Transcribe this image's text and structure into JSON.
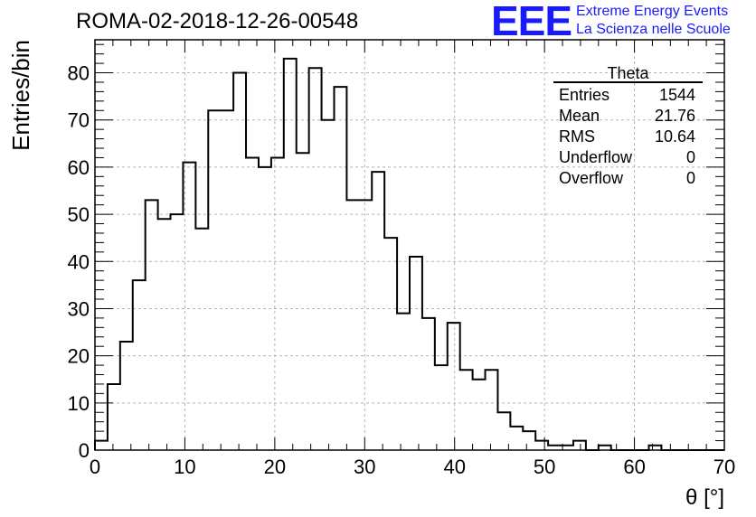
{
  "header": {
    "run_title": "ROMA-02-2018-12-26-00548",
    "logo_text": "EEE",
    "logo_line1": "Extreme Energy Events",
    "logo_line2": "La Scienza nelle Scuole",
    "brand_color": "#1a1aff"
  },
  "stats_box": {
    "title": "Theta",
    "rows": [
      {
        "label": "Entries",
        "value": "1544"
      },
      {
        "label": "Mean",
        "value": "21.76"
      },
      {
        "label": "RMS",
        "value": "10.64"
      },
      {
        "label": "Underflow",
        "value": "0"
      },
      {
        "label": "Overflow",
        "value": "0"
      }
    ]
  },
  "chart_data": {
    "type": "histogram",
    "xlabel": "θ [°]",
    "ylabel": "Entries/bin",
    "xlim": [
      0,
      70
    ],
    "ylim": [
      0,
      87
    ],
    "x_ticks": [
      0,
      10,
      20,
      30,
      40,
      50,
      60,
      70
    ],
    "y_ticks": [
      0,
      10,
      20,
      30,
      40,
      50,
      60,
      70,
      80
    ],
    "grid": true,
    "bin_width": 1.4,
    "bin_edges_start": 0,
    "values": [
      2,
      14,
      23,
      36,
      53,
      49,
      50,
      61,
      47,
      72,
      72,
      80,
      62,
      60,
      62,
      83,
      63,
      81,
      70,
      77,
      53,
      53,
      59,
      45,
      29,
      41,
      28,
      18,
      27,
      17,
      15,
      17,
      8,
      5,
      4,
      2,
      1,
      1,
      2,
      0,
      1,
      0,
      0,
      0,
      1,
      0,
      0,
      0,
      0,
      0
    ]
  }
}
